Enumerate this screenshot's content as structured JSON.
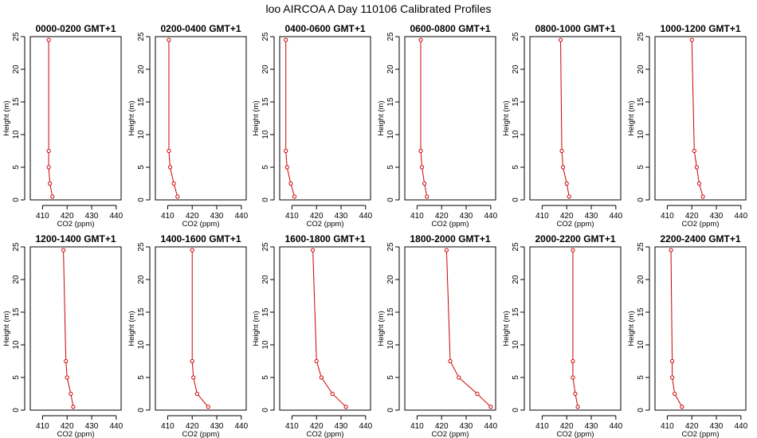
{
  "title": "loo AIRCOA A  Day 110106  Calibrated Profiles",
  "colors": {
    "series": "#cc0000",
    "axis": "#000000",
    "background": "#ffffff"
  },
  "chart_data": {
    "type": "line",
    "layout": "2x6 panel grid",
    "xlabel": "CO2 (ppm)",
    "ylabel": "Height (m)",
    "xlim": [
      405,
      442
    ],
    "ylim": [
      0,
      25
    ],
    "xticks": [
      410,
      420,
      430,
      440
    ],
    "yticks": [
      0,
      5,
      10,
      15,
      20,
      25
    ],
    "heights": [
      0.5,
      2.5,
      5,
      7.5,
      24.5
    ],
    "panels": [
      {
        "title": "0000-0200 GMT+1",
        "co2": [
          414,
          413,
          412.5,
          412.5,
          412.5
        ]
      },
      {
        "title": "0200-0400 GMT+1",
        "co2": [
          414,
          412.5,
          411,
          410.5,
          410.5
        ]
      },
      {
        "title": "0400-0600 GMT+1",
        "co2": [
          411,
          409.5,
          408,
          407.5,
          407.5
        ]
      },
      {
        "title": "0600-0800 GMT+1",
        "co2": [
          414,
          413,
          412,
          411.5,
          411.5
        ]
      },
      {
        "title": "0800-1000 GMT+1",
        "co2": [
          421,
          420,
          418.5,
          418,
          417.5
        ]
      },
      {
        "title": "1000-1200 GMT+1",
        "co2": [
          424.5,
          423,
          422,
          421,
          420
        ]
      },
      {
        "title": "1200-1400 GMT+1",
        "co2": [
          422.5,
          421.5,
          420,
          419.5,
          418.5
        ]
      },
      {
        "title": "1400-1600 GMT+1",
        "co2": [
          426.5,
          422,
          420.5,
          420,
          420
        ]
      },
      {
        "title": "1600-1800 GMT+1",
        "co2": [
          432,
          426.5,
          422,
          420,
          418.5
        ]
      },
      {
        "title": "1800-2000 GMT+1",
        "co2": [
          440,
          434.5,
          427,
          423.5,
          422
        ]
      },
      {
        "title": "2000-2200 GMT+1",
        "co2": [
          424.5,
          423.5,
          422.5,
          422.5,
          422.5
        ]
      },
      {
        "title": "2200-2400 GMT+1",
        "co2": [
          416,
          413,
          412,
          412,
          411.5
        ]
      }
    ]
  }
}
